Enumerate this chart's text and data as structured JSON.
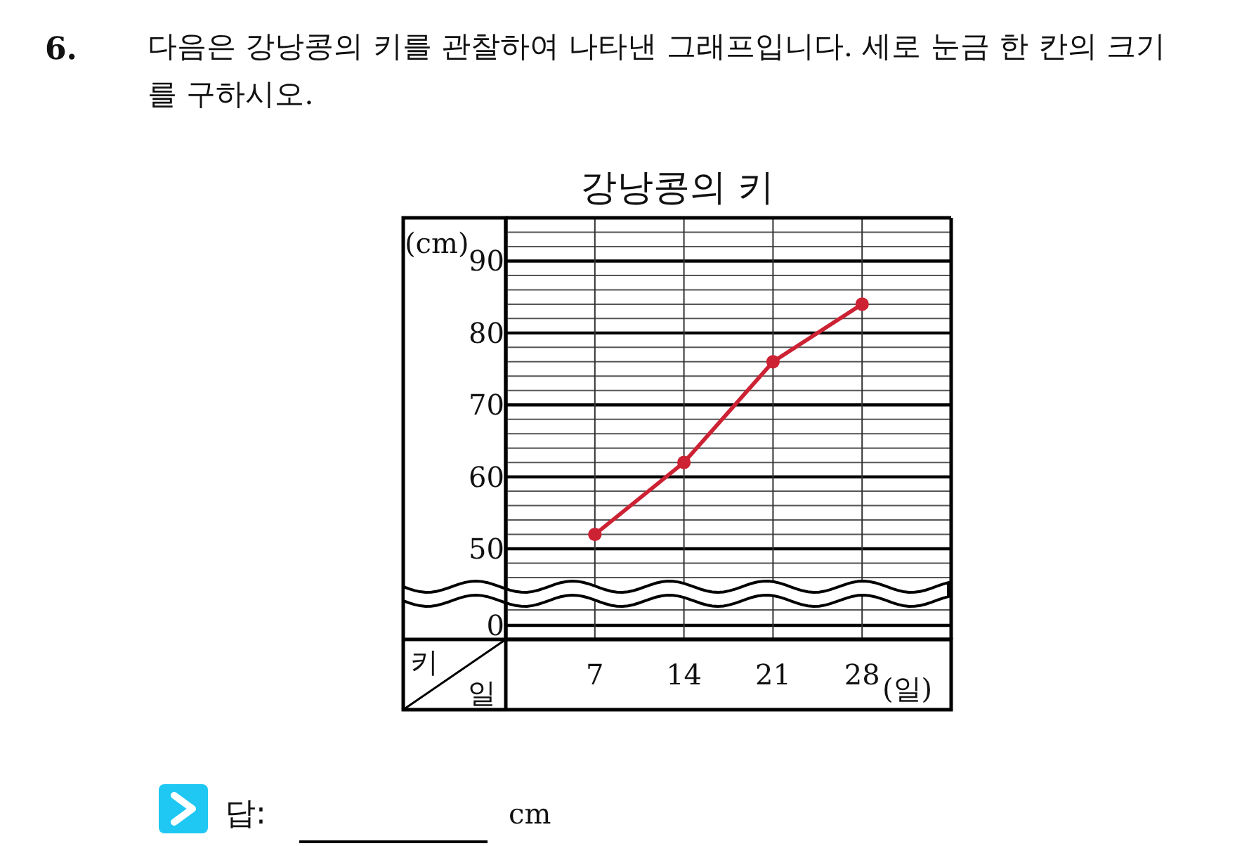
{
  "chart_data": {
    "type": "line",
    "title": "강낭콩의 키",
    "xlabel": "일",
    "ylabel": "키",
    "annotations": [
      "6.",
      "다음은 강낭콩의 키를 관찰하여 나타낸 그래프입니다. 세로 눈금 한 칸의 크기를 구하시오.",
      "(cm)",
      "(일)",
      "답:",
      "cm",
      "0"
    ],
    "x": [
      7,
      14,
      21,
      28
    ],
    "values": [
      52,
      62,
      76,
      84
    ],
    "color": "#cc2233",
    "marker": "circle",
    "grid": true,
    "xlim": [
      0,
      35
    ],
    "xticks": [
      7,
      14,
      21,
      28
    ],
    "ylim": [
      46,
      96
    ],
    "yticks": [
      50,
      60,
      70,
      80,
      90
    ]
  }
}
